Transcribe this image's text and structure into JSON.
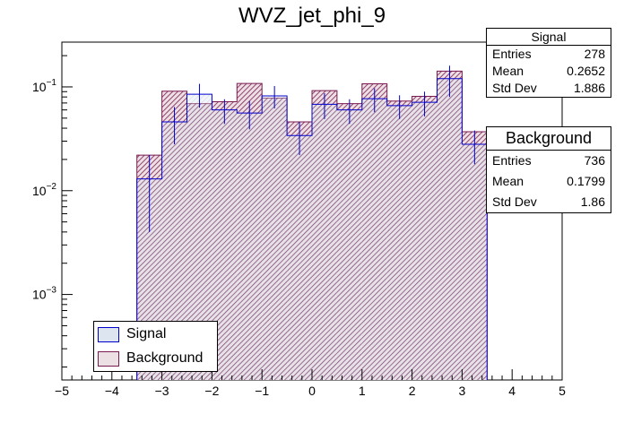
{
  "chart_data": {
    "type": "bar",
    "title": "WVZ_jet_phi_9",
    "xlabel": "",
    "ylabel": "",
    "xlim": [
      -5,
      5
    ],
    "yscale": "log",
    "ylim": [
      0.00015,
      0.27
    ],
    "bin_edges": [
      -3.5,
      -3,
      -2.5,
      -2,
      -1.5,
      -1,
      -0.5,
      0,
      0.5,
      1,
      1.5,
      2,
      2.5,
      3,
      3.5
    ],
    "x_tick_labels": [
      "-5",
      "-4",
      "-3",
      "-2",
      "-1",
      "0",
      "1",
      "2",
      "3",
      "4",
      "5"
    ],
    "y_tick_labels": [
      {
        "value": 0.1,
        "base": "10",
        "exp": "-1"
      },
      {
        "value": 0.01,
        "base": "10",
        "exp": "-2"
      },
      {
        "value": 0.001,
        "base": "10",
        "exp": "-3"
      }
    ],
    "series": [
      {
        "name": "Signal",
        "color": "#0000cc",
        "fill": "#dde6f0",
        "values": [
          0.013,
          0.046,
          0.085,
          0.06,
          0.056,
          0.082,
          0.034,
          0.068,
          0.06,
          0.077,
          0.066,
          0.071,
          0.12,
          0.028
        ],
        "errors": [
          0.009,
          0.018,
          0.022,
          0.016,
          0.017,
          0.02,
          0.012,
          0.019,
          0.016,
          0.02,
          0.017,
          0.019,
          0.04,
          0.01
        ]
      },
      {
        "name": "Background",
        "color": "#7a1a50",
        "fill": "#ede0e4",
        "values": [
          0.022,
          0.091,
          0.069,
          0.072,
          0.108,
          0.078,
          0.046,
          0.092,
          0.069,
          0.107,
          0.073,
          0.081,
          0.142,
          0.037
        ]
      }
    ]
  },
  "stats": {
    "signal": {
      "title": "Signal",
      "entries_label": "Entries",
      "entries": "278",
      "mean_label": "Mean",
      "mean": "0.2652",
      "std_label": "Std Dev",
      "std": "1.886"
    },
    "background": {
      "title": "Background",
      "entries_label": "Entries",
      "entries": "736",
      "mean_label": "Mean",
      "mean": "0.1799",
      "std_label": "Std Dev",
      "std": "1.86"
    }
  },
  "legend": {
    "signal_label": "Signal",
    "background_label": "Background"
  }
}
